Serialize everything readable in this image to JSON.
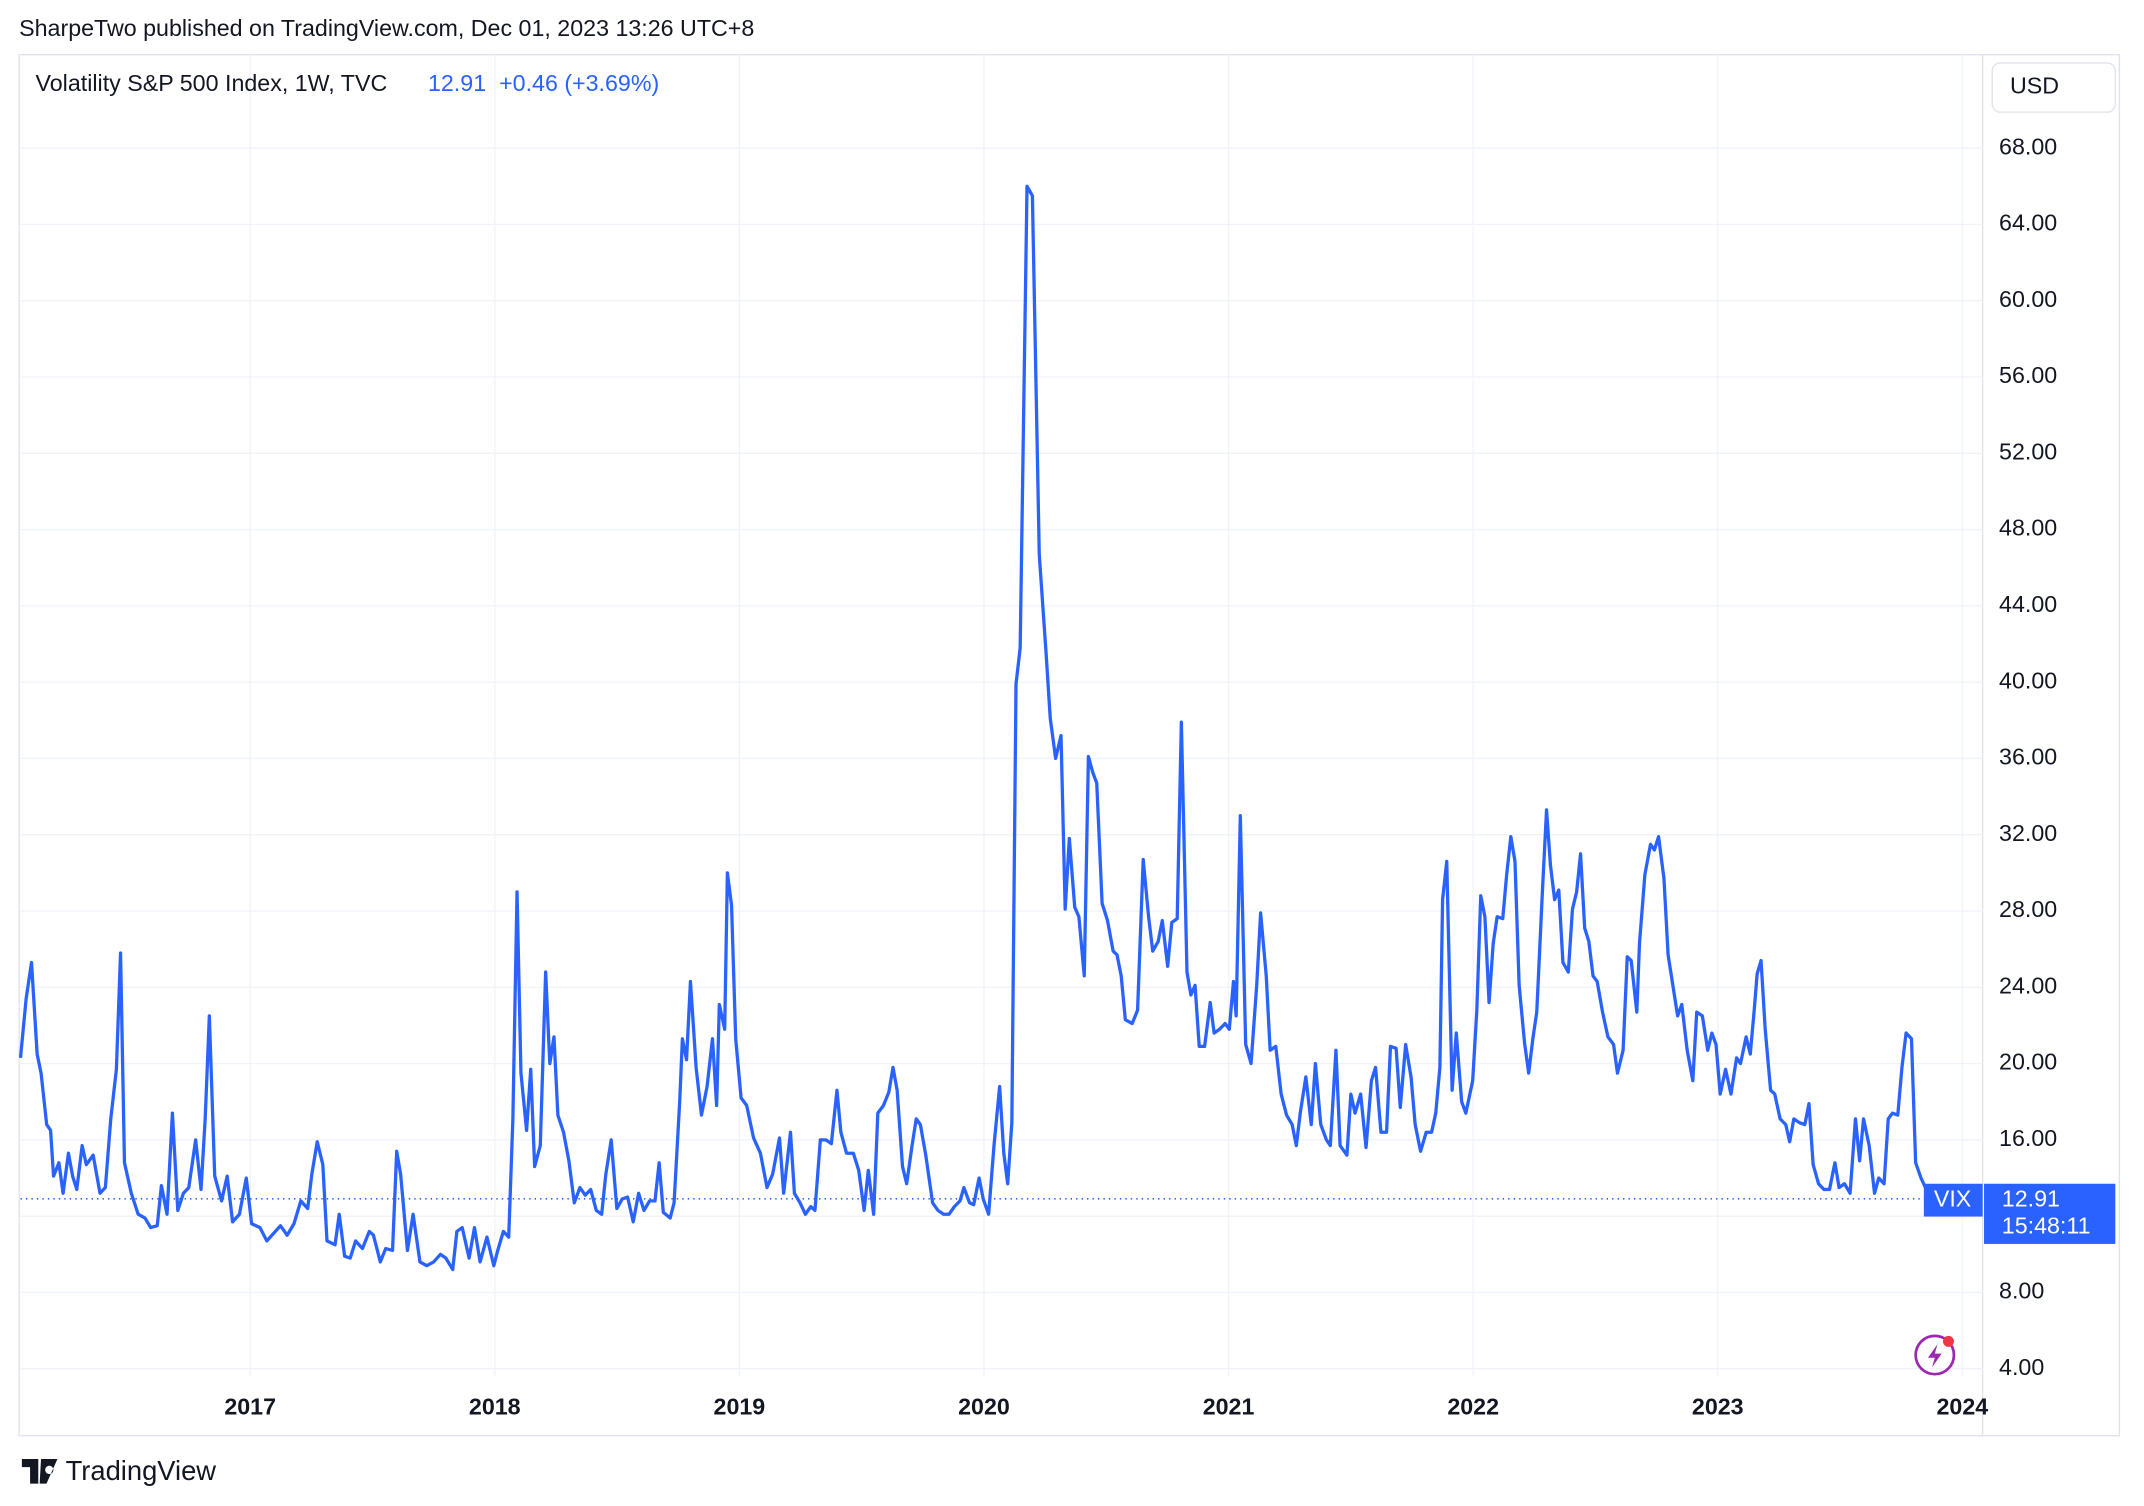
{
  "header": {
    "publisher": "SharpeTwo published on TradingView.com, Dec 01, 2023 13:26 UTC+8",
    "footer_brand": "TradingView"
  },
  "chart_data": {
    "type": "line",
    "title": "Volatility S&P 500 Index, 1W, TVC",
    "change_label": "+0.46 (+3.69%)",
    "currency": "USD",
    "symbol": "VIX",
    "countdown": "15:48:11",
    "grid": true,
    "xlim": [
      2016.061,
      2024.083
    ],
    "xticks": [
      2017,
      2018,
      2019,
      2020,
      2021,
      2022,
      2023,
      2024
    ],
    "ylim": [
      3.57,
      72.9
    ],
    "yticks": [
      {
        "value": 4,
        "label": "4.00"
      },
      {
        "value": 8,
        "label": "8.00"
      },
      {
        "value": 12,
        "label": "12.00"
      },
      {
        "value": 16,
        "label": "16.00"
      },
      {
        "value": 20,
        "label": "20.00"
      },
      {
        "value": 24,
        "label": "24.00"
      },
      {
        "value": 28,
        "label": "28.00"
      },
      {
        "value": 32,
        "label": "32.00"
      },
      {
        "value": 36,
        "label": "36.00"
      },
      {
        "value": 40,
        "label": "40.00"
      },
      {
        "value": 44,
        "label": "44.00"
      },
      {
        "value": 48,
        "label": "48.00"
      },
      {
        "value": 52,
        "label": "52.00"
      },
      {
        "value": 56,
        "label": "56.00"
      },
      {
        "value": 60,
        "label": "60.00"
      },
      {
        "value": 64,
        "label": "64.00"
      },
      {
        "value": 68,
        "label": "68.00"
      }
    ],
    "x": [
      2016.061,
      2016.084,
      2016.106,
      2016.129,
      2016.145,
      2016.168,
      2016.184,
      2016.196,
      2016.218,
      2016.235,
      2016.257,
      2016.274,
      2016.291,
      2016.313,
      2016.33,
      2016.358,
      2016.386,
      2016.408,
      2016.43,
      2016.453,
      2016.47,
      2016.486,
      2016.514,
      2016.542,
      2016.57,
      2016.593,
      2016.62,
      2016.637,
      2016.66,
      2016.682,
      2016.704,
      2016.727,
      2016.749,
      2016.777,
      2016.799,
      2016.816,
      2016.833,
      2016.855,
      2016.883,
      2016.906,
      2016.928,
      2016.956,
      2016.984,
      2017.006,
      2017.04,
      2017.068,
      2017.096,
      2017.124,
      2017.151,
      2017.179,
      2017.207,
      2017.235,
      2017.252,
      2017.274,
      2017.297,
      2017.314,
      2017.347,
      2017.364,
      2017.386,
      2017.409,
      2017.431,
      2017.459,
      2017.487,
      2017.504,
      2017.532,
      2017.554,
      2017.582,
      2017.599,
      2017.615,
      2017.643,
      2017.666,
      2017.694,
      2017.722,
      2017.75,
      2017.778,
      2017.8,
      2017.828,
      2017.845,
      2017.867,
      2017.895,
      2017.917,
      2017.94,
      2017.968,
      2017.996,
      2018.012,
      2018.035,
      2018.057,
      2018.074,
      2018.091,
      2018.107,
      2018.13,
      2018.147,
      2018.163,
      2018.186,
      2018.208,
      2018.225,
      2018.242,
      2018.258,
      2018.281,
      2018.303,
      2018.325,
      2018.348,
      2018.37,
      2018.392,
      2018.415,
      2018.437,
      2018.454,
      2018.476,
      2018.499,
      2018.521,
      2018.543,
      2018.566,
      2018.588,
      2018.61,
      2018.633,
      2018.655,
      2018.672,
      2018.689,
      2018.717,
      2018.733,
      2018.756,
      2018.767,
      2018.784,
      2018.8,
      2018.823,
      2018.845,
      2018.868,
      2018.89,
      2018.907,
      2018.918,
      2018.94,
      2018.951,
      2018.968,
      2018.985,
      2019.007,
      2019.03,
      2019.058,
      2019.086,
      2019.113,
      2019.136,
      2019.164,
      2019.181,
      2019.209,
      2019.225,
      2019.248,
      2019.27,
      2019.292,
      2019.309,
      2019.331,
      2019.354,
      2019.376,
      2019.399,
      2019.415,
      2019.438,
      2019.466,
      2019.488,
      2019.51,
      2019.527,
      2019.549,
      2019.566,
      2019.589,
      2019.611,
      2019.628,
      2019.645,
      2019.667,
      2019.684,
      2019.706,
      2019.723,
      2019.74,
      2019.762,
      2019.79,
      2019.812,
      2019.835,
      2019.857,
      2019.879,
      2019.902,
      2019.918,
      2019.941,
      2019.958,
      2019.98,
      2019.997,
      2020.019,
      2020.041,
      2020.064,
      2020.081,
      2020.097,
      2020.114,
      2020.131,
      2020.148,
      2020.176,
      2020.198,
      2020.226,
      2020.254,
      2020.271,
      2020.293,
      2020.315,
      2020.332,
      2020.349,
      2020.371,
      2020.388,
      2020.41,
      2020.427,
      2020.444,
      2020.461,
      2020.483,
      2020.505,
      2020.528,
      2020.544,
      2020.561,
      2020.578,
      2020.606,
      2020.628,
      2020.651,
      2020.673,
      2020.69,
      2020.712,
      2020.729,
      2020.751,
      2020.768,
      2020.79,
      2020.807,
      2020.83,
      2020.846,
      2020.863,
      2020.88,
      2020.902,
      2020.925,
      2020.941,
      2020.963,
      2020.986,
      2021.003,
      2021.02,
      2021.031,
      2021.048,
      2021.07,
      2021.092,
      2021.115,
      2021.131,
      2021.154,
      2021.17,
      2021.193,
      2021.215,
      2021.237,
      2021.26,
      2021.277,
      2021.293,
      2021.316,
      2021.338,
      2021.355,
      2021.377,
      2021.4,
      2021.416,
      2021.439,
      2021.456,
      2021.484,
      2021.5,
      2021.517,
      2021.54,
      2021.562,
      2021.584,
      2021.601,
      2021.623,
      2021.646,
      2021.662,
      2021.685,
      2021.702,
      2021.724,
      2021.746,
      2021.763,
      2021.785,
      2021.808,
      2021.83,
      2021.847,
      2021.864,
      2021.875,
      2021.892,
      2021.914,
      2021.931,
      2021.953,
      2021.97,
      2021.998,
      2022.015,
      2022.031,
      2022.048,
      2022.065,
      2022.082,
      2022.098,
      2022.121,
      2022.137,
      2022.154,
      2022.171,
      2022.188,
      2022.21,
      2022.227,
      2022.244,
      2022.26,
      2022.283,
      2022.3,
      2022.316,
      2022.333,
      2022.35,
      2022.367,
      2022.389,
      2022.406,
      2022.423,
      2022.439,
      2022.456,
      2022.473,
      2022.49,
      2022.507,
      2022.529,
      2022.551,
      2022.574,
      2022.59,
      2022.613,
      2022.63,
      2022.646,
      2022.669,
      2022.68,
      2022.702,
      2022.725,
      2022.741,
      2022.758,
      2022.78,
      2022.797,
      2022.814,
      2022.836,
      2022.853,
      2022.875,
      2022.898,
      2022.914,
      2022.937,
      2022.959,
      2022.976,
      2022.993,
      2023.01,
      2023.032,
      2023.054,
      2023.077,
      2023.093,
      2023.116,
      2023.133,
      2023.149,
      2023.161,
      2023.177,
      2023.194,
      2023.216,
      2023.233,
      2023.255,
      2023.278,
      2023.294,
      2023.311,
      2023.334,
      2023.356,
      2023.373,
      2023.39,
      2023.412,
      2023.434,
      2023.457,
      2023.479,
      2023.496,
      2023.518,
      2023.541,
      2023.563,
      2023.58,
      2023.596,
      2023.619,
      2023.641,
      2023.658,
      2023.68,
      2023.697,
      2023.714,
      2023.736,
      2023.753,
      2023.77,
      2023.792,
      2023.809,
      2023.831,
      2023.87
    ],
    "series": [
      {
        "name": "Volatility S&P 500 Index, 1W, TVC",
        "color": "#2962ff",
        "values": [
          20.3,
          23.4,
          25.3,
          20.5,
          19.5,
          16.8,
          16.5,
          14.1,
          14.8,
          13.2,
          15.3,
          14.1,
          13.4,
          15.7,
          14.7,
          15.2,
          13.2,
          13.5,
          17.1,
          19.7,
          25.8,
          14.8,
          13.2,
          12.1,
          11.9,
          11.4,
          11.5,
          13.6,
          12.1,
          17.4,
          12.3,
          13.2,
          13.5,
          16.0,
          13.4,
          17.1,
          22.5,
          14.1,
          12.8,
          14.1,
          11.7,
          12.1,
          14.0,
          11.6,
          11.4,
          10.7,
          11.1,
          11.5,
          11.0,
          11.6,
          12.8,
          12.4,
          14.2,
          15.9,
          14.7,
          10.7,
          10.5,
          12.1,
          9.9,
          9.8,
          10.7,
          10.3,
          11.2,
          11.0,
          9.6,
          10.3,
          10.2,
          15.4,
          14.2,
          10.2,
          12.1,
          9.6,
          9.4,
          9.6,
          10.0,
          9.8,
          9.2,
          11.2,
          11.4,
          9.8,
          11.4,
          9.6,
          10.9,
          9.4,
          10.2,
          11.2,
          10.9,
          17.1,
          29.0,
          19.5,
          16.5,
          19.7,
          14.6,
          15.7,
          24.8,
          20.0,
          21.4,
          17.3,
          16.4,
          14.9,
          12.7,
          13.5,
          13.1,
          13.4,
          12.3,
          12.1,
          14.2,
          16.0,
          12.4,
          12.9,
          13.0,
          11.7,
          13.2,
          12.3,
          12.8,
          12.8,
          14.8,
          12.2,
          11.9,
          12.7,
          18.0,
          21.3,
          20.2,
          24.3,
          19.8,
          17.3,
          18.8,
          21.3,
          17.8,
          23.1,
          21.8,
          30.0,
          28.3,
          21.3,
          18.2,
          17.8,
          16.1,
          15.3,
          13.5,
          14.2,
          16.1,
          13.2,
          16.4,
          13.2,
          12.7,
          12.1,
          12.5,
          12.3,
          16.0,
          16.0,
          15.8,
          18.6,
          16.4,
          15.3,
          15.3,
          14.4,
          12.3,
          14.4,
          12.1,
          17.4,
          17.8,
          18.5,
          19.8,
          18.6,
          14.6,
          13.7,
          15.7,
          17.1,
          16.8,
          15.2,
          12.7,
          12.3,
          12.1,
          12.1,
          12.5,
          12.8,
          13.5,
          12.7,
          12.6,
          14.0,
          12.9,
          12.1,
          15.7,
          18.8,
          15.3,
          13.7,
          16.9,
          39.9,
          41.8,
          66.0,
          65.5,
          46.7,
          41.5,
          38.1,
          36.0,
          37.2,
          28.1,
          31.8,
          28.2,
          27.7,
          24.6,
          36.1,
          35.3,
          34.7,
          28.4,
          27.5,
          25.9,
          25.7,
          24.6,
          22.3,
          22.1,
          22.8,
          30.7,
          27.7,
          25.9,
          26.4,
          27.5,
          25.1,
          27.4,
          27.6,
          37.9,
          24.8,
          23.6,
          24.1,
          20.9,
          20.9,
          23.2,
          21.6,
          21.8,
          22.1,
          21.8,
          24.3,
          22.5,
          33.0,
          21.0,
          20.0,
          24.1,
          27.9,
          24.6,
          20.7,
          20.9,
          18.4,
          17.3,
          16.8,
          15.7,
          17.4,
          19.3,
          16.8,
          20.0,
          16.8,
          16.0,
          15.7,
          20.7,
          15.7,
          15.2,
          18.4,
          17.4,
          18.4,
          15.6,
          19.1,
          19.8,
          16.4,
          16.4,
          20.9,
          20.8,
          17.7,
          21.0,
          19.3,
          16.8,
          15.4,
          16.4,
          16.4,
          17.4,
          19.8,
          28.6,
          30.6,
          18.6,
          21.6,
          18.0,
          17.4,
          19.1,
          22.8,
          28.8,
          27.7,
          23.2,
          26.3,
          27.7,
          27.6,
          29.9,
          31.9,
          30.6,
          24.1,
          21.1,
          19.5,
          21.3,
          22.7,
          29.0,
          33.3,
          30.4,
          28.6,
          29.1,
          25.3,
          24.8,
          28.1,
          29.0,
          31.0,
          27.1,
          26.4,
          24.6,
          24.3,
          22.7,
          21.4,
          21.0,
          19.5,
          20.7,
          25.6,
          25.4,
          22.7,
          26.3,
          29.9,
          31.5,
          31.2,
          31.9,
          29.7,
          25.7,
          24.3,
          22.5,
          23.1,
          20.7,
          19.1,
          22.7,
          22.5,
          20.7,
          21.6,
          21.0,
          18.4,
          19.7,
          18.4,
          20.3,
          20.0,
          21.4,
          20.5,
          22.8,
          24.7,
          25.4,
          21.8,
          18.6,
          18.4,
          17.1,
          16.8,
          15.9,
          17.1,
          16.9,
          16.8,
          17.9,
          14.7,
          13.7,
          13.4,
          13.4,
          14.8,
          13.5,
          13.7,
          13.2,
          17.1,
          14.9,
          17.1,
          15.7,
          13.2,
          14.0,
          13.7,
          17.1,
          17.4,
          17.3,
          19.8,
          21.6,
          21.3,
          14.8,
          14.0,
          12.91
        ]
      }
    ]
  }
}
